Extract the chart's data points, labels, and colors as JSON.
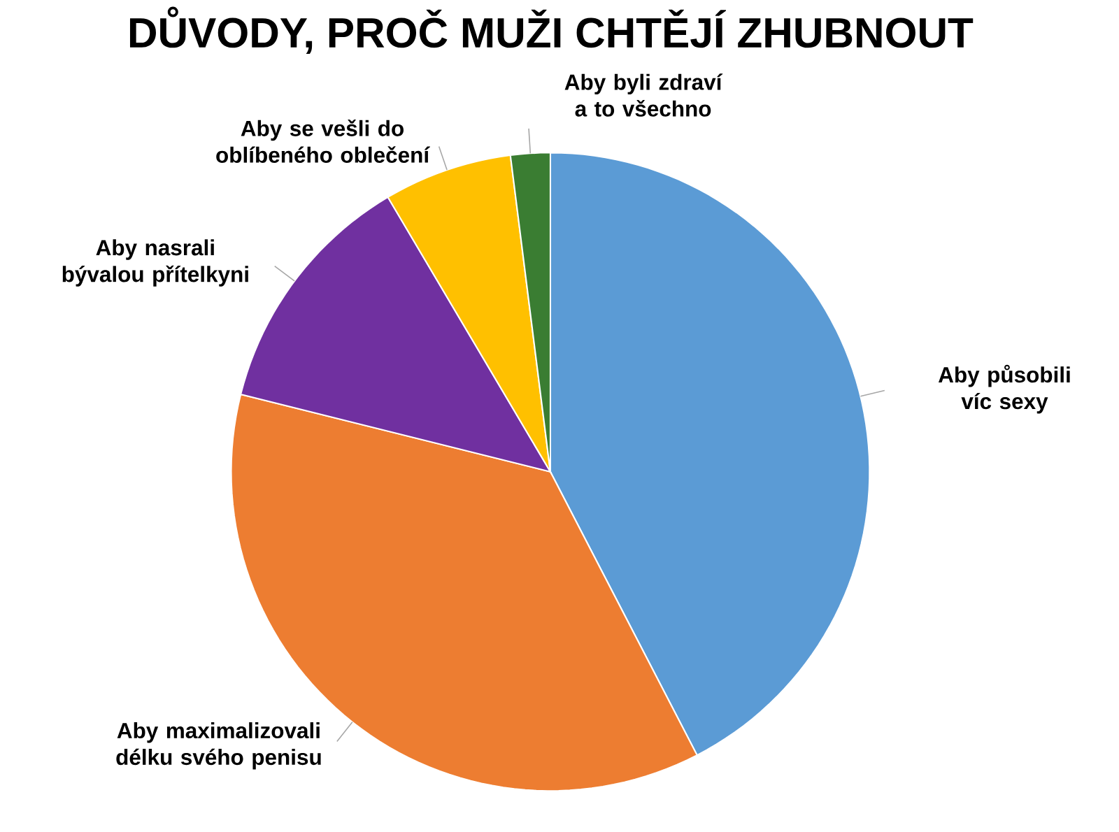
{
  "chart_data": {
    "type": "pie",
    "title": "DŮVODY, PROČ MUŽI CHTĚJÍ ZHUBNOUT",
    "categories": [
      "Aby působili víc sexy",
      "Aby maximalizovali délku svého penisu",
      "Aby nasrali bývalou přítelkyni",
      "Aby se vešli do oblíbeného oblečení",
      "Aby byli zdraví a to všechno"
    ],
    "values": [
      42.4,
      36.5,
      12.6,
      6.5,
      2.0
    ],
    "colors": [
      "#5b9bd5",
      "#ed7d31",
      "#7030a0",
      "#ffc000",
      "#3a7d32"
    ]
  }
}
